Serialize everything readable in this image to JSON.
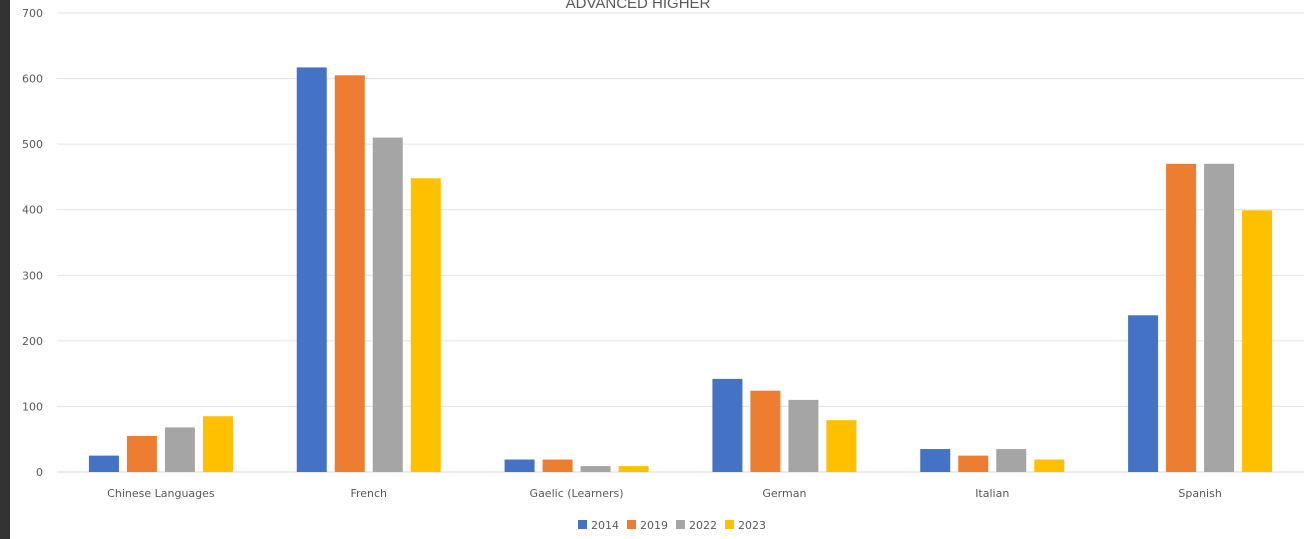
{
  "chart_data": {
    "type": "bar",
    "title": "ADVANCED HIGHER",
    "categories": [
      "Chinese Languages",
      "French",
      "Gaelic (Learners)",
      "German",
      "Italian",
      "Spanish"
    ],
    "series": [
      {
        "name": "2014",
        "color": "#4472C4",
        "values": [
          25,
          617,
          19,
          142,
          35,
          239
        ]
      },
      {
        "name": "2019",
        "color": "#ED7D31",
        "values": [
          55,
          605,
          19,
          124,
          25,
          470
        ]
      },
      {
        "name": "2022",
        "color": "#A5A5A5",
        "values": [
          68,
          510,
          9,
          110,
          35,
          470
        ]
      },
      {
        "name": "2023",
        "color": "#FFC000",
        "values": [
          85,
          448,
          9,
          79,
          19,
          399
        ]
      }
    ],
    "ylim": [
      0,
      700
    ],
    "yticks": [
      0,
      100,
      200,
      300,
      400,
      500,
      600,
      700
    ],
    "grid": true,
    "legend_position": "bottom"
  }
}
